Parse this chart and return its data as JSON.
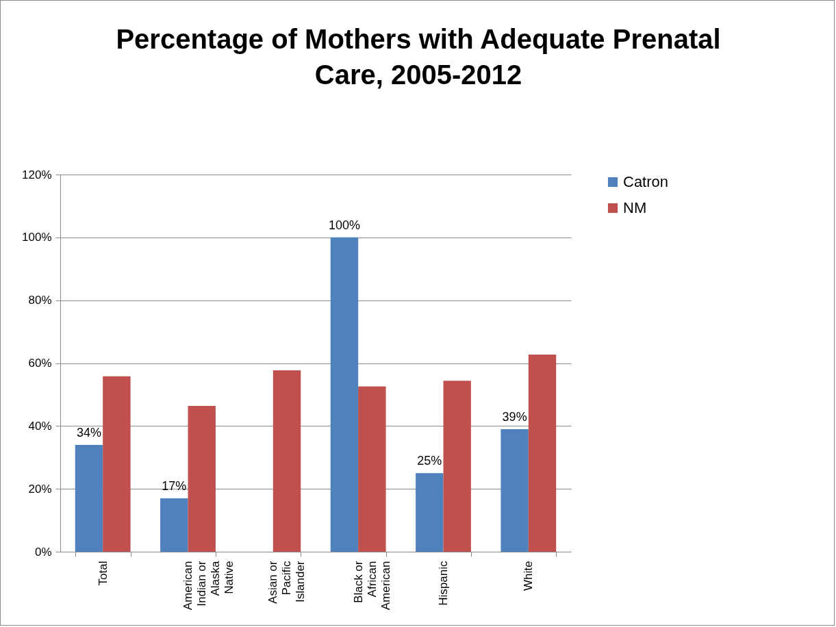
{
  "chart_data": {
    "type": "bar",
    "title": "Percentage of Mothers with Adequate Prenatal Care, 2005-2012",
    "categories": [
      "Total",
      "American Indian or Alaska Native",
      "Asian or Pacific Islander",
      "Black or African American",
      "Hispanic",
      "White"
    ],
    "series": [
      {
        "name": "Catron",
        "color": "#4f81bd",
        "values": [
          34,
          17,
          null,
          100,
          25,
          39
        ],
        "value_labels": [
          "34%",
          "17%",
          null,
          "100%",
          "25%",
          "39%"
        ]
      },
      {
        "name": "NM",
        "color": "#c0504d",
        "values": [
          55.8,
          46.4,
          57.7,
          52.6,
          54.4,
          62.7
        ]
      }
    ],
    "ylim": [
      0,
      120
    ],
    "yticks": [
      {
        "value": 0,
        "label": "0%"
      },
      {
        "value": 20,
        "label": "20%"
      },
      {
        "value": 40,
        "label": "40%"
      },
      {
        "value": 60,
        "label": "60%"
      },
      {
        "value": 80,
        "label": "80%"
      },
      {
        "value": 100,
        "label": "100%"
      },
      {
        "value": 120,
        "label": "120%"
      }
    ],
    "grid": "y",
    "legend": "right"
  }
}
